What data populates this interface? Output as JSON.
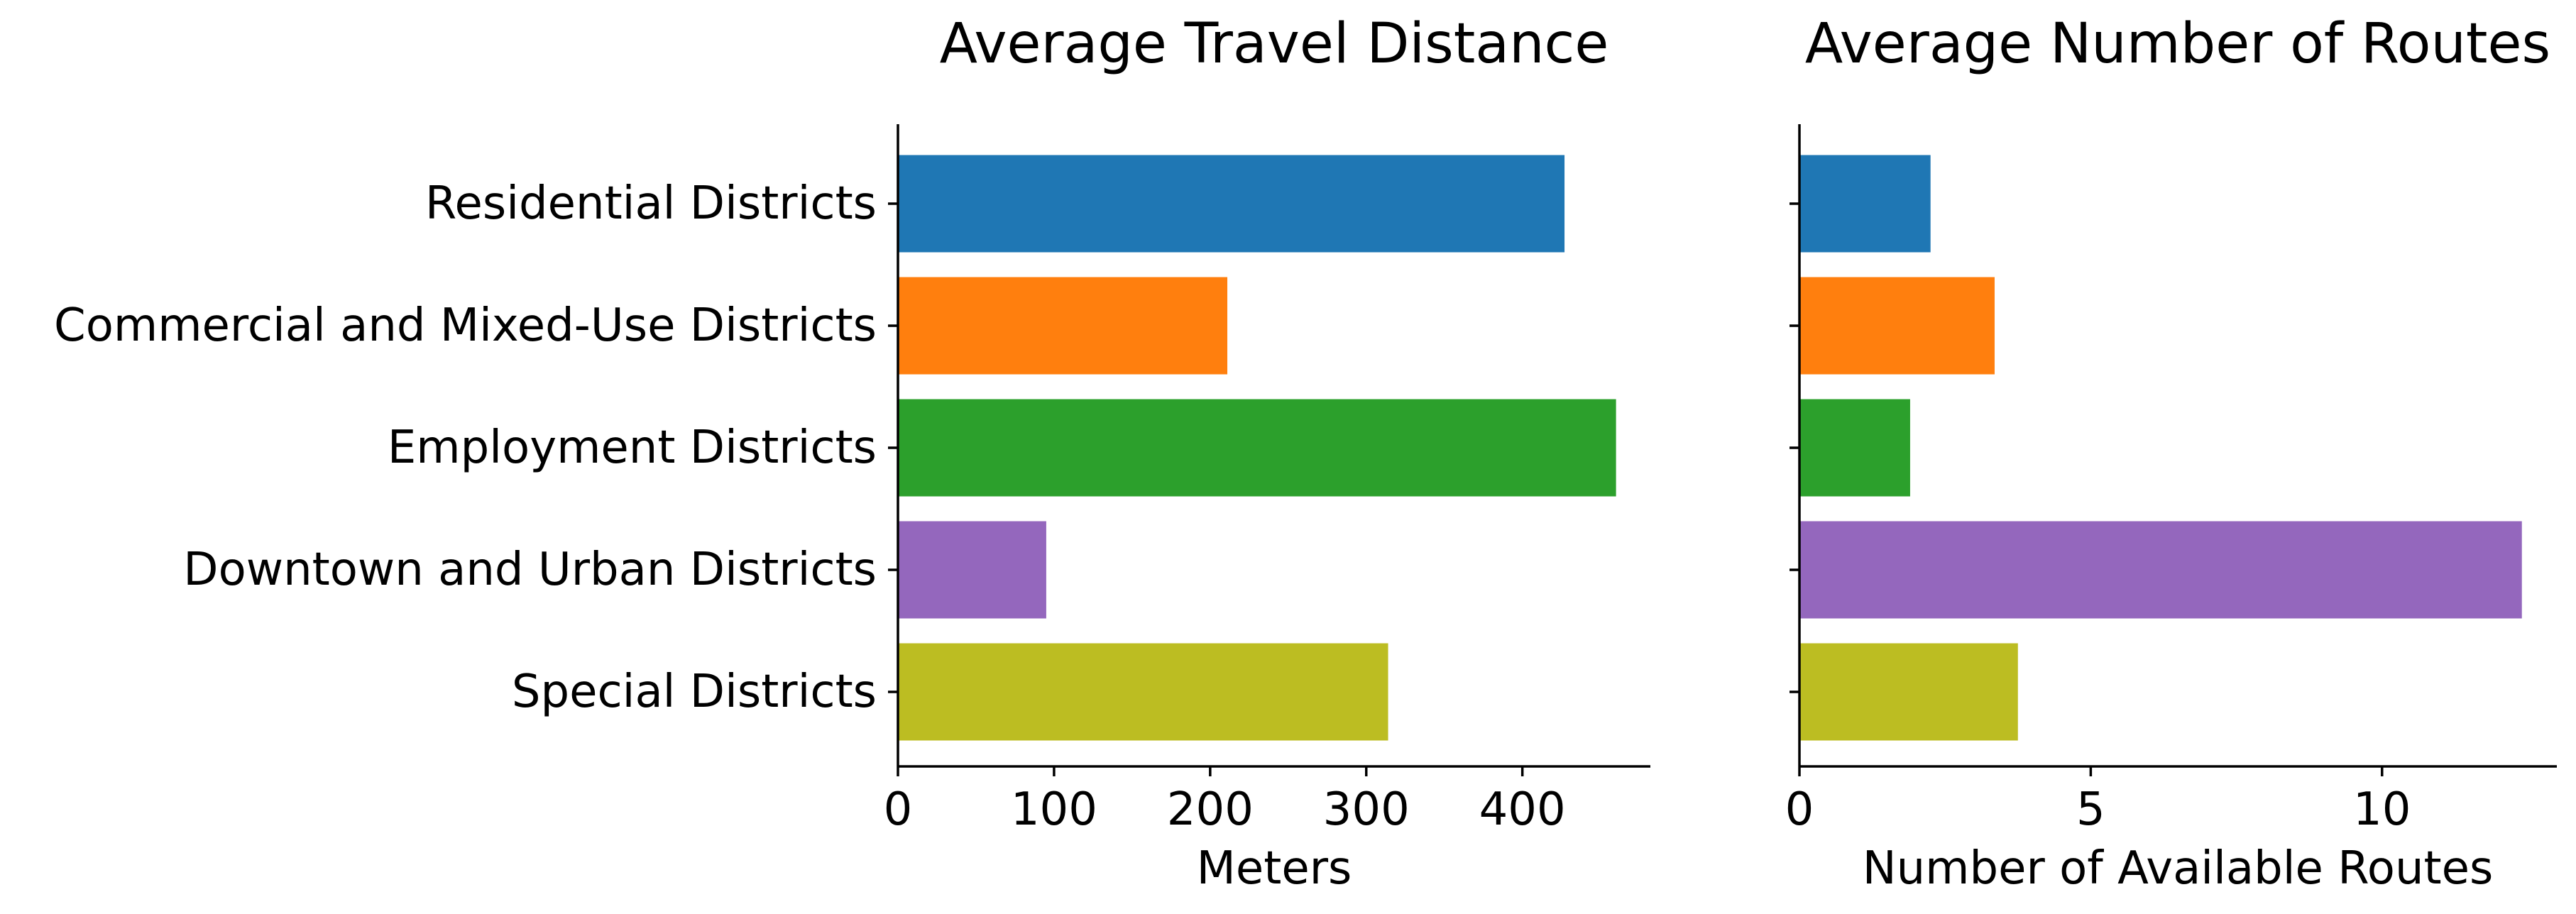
{
  "chart_data": [
    {
      "type": "bar",
      "orientation": "horizontal",
      "title": "Average Travel Distance",
      "xlabel": "Meters",
      "ylabel": "",
      "categories": [
        "Residential Districts",
        "Commercial and Mixed-Use Districts",
        "Employment Districts",
        "Downtown and Urban Districts",
        "Special Districts"
      ],
      "values": [
        427,
        211,
        460,
        95,
        314
      ],
      "xlim": [
        0,
        482
      ],
      "xticks": [
        0,
        100,
        200,
        300,
        400
      ],
      "grid": false,
      "colors": [
        "#1f77b4",
        "#ff7f0e",
        "#2ca02c",
        "#9467bd",
        "#bcbd22"
      ]
    },
    {
      "type": "bar",
      "orientation": "horizontal",
      "title": "Average Number of Routes",
      "xlabel": "Number of Available Routes",
      "ylabel": "",
      "categories": [
        "Residential Districts",
        "Commercial and Mixed-Use Districts",
        "Employment Districts",
        "Downtown and Urban Districts",
        "Special Districts"
      ],
      "values": [
        2.25,
        3.35,
        1.9,
        12.4,
        3.75
      ],
      "xlim": [
        0,
        13
      ],
      "xticks": [
        0,
        5,
        10
      ],
      "grid": false,
      "colors": [
        "#1f77b4",
        "#ff7f0e",
        "#2ca02c",
        "#9467bd",
        "#bcbd22"
      ]
    }
  ]
}
